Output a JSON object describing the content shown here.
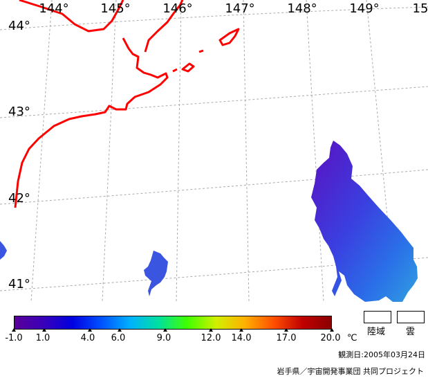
{
  "map": {
    "longitude_labels": [
      "144°",
      "145°",
      "146°",
      "147°",
      "148°",
      "149°",
      "15"
    ],
    "latitude_labels": [
      "44°",
      "43°",
      "42°",
      "41°"
    ],
    "coastline_color": "#ff0000",
    "graticule_color": "#aaaaaa"
  },
  "colorbar": {
    "tick_labels": [
      "-1.0",
      "1.0",
      "4.0",
      "6.0",
      "9.0",
      "12.0",
      "14.0",
      "17.0",
      "20.0"
    ],
    "tick_values": [
      -1,
      1,
      4,
      6,
      9,
      12,
      14,
      17,
      20
    ],
    "unit": "℃",
    "min": -1,
    "max": 20,
    "colors": [
      "#5a009a",
      "#3a00b8",
      "#0000e0",
      "#0050ff",
      "#00b0ff",
      "#00e0a0",
      "#40ff00",
      "#d0f000",
      "#ffb000",
      "#ff5000",
      "#c00000",
      "#8a0000"
    ]
  },
  "legend": {
    "land_label": "陸域",
    "cloud_label": "雲"
  },
  "footer": {
    "observation_date": "観測日:2005年03月24日",
    "credit": "岩手県／宇宙開発事業団 共同プロジェクト"
  }
}
